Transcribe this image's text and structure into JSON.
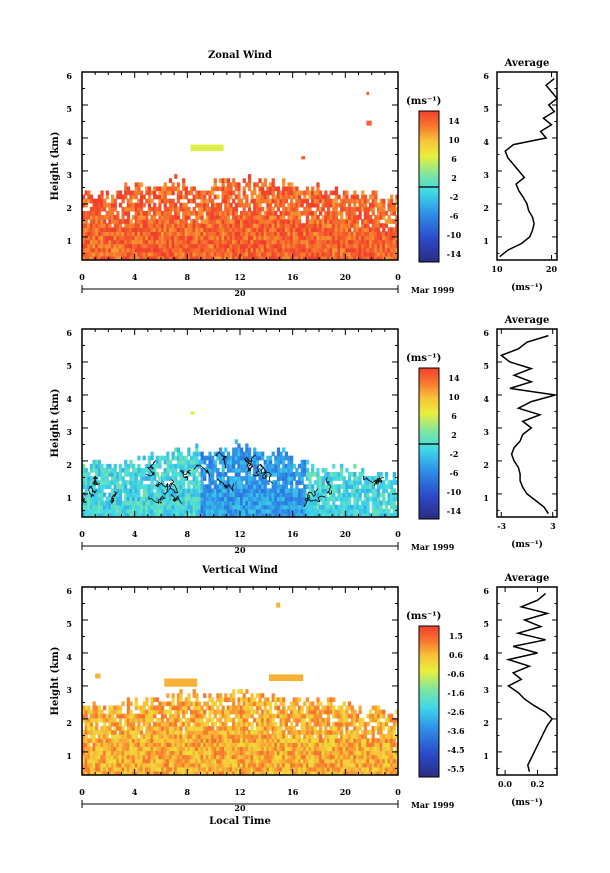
{
  "figure": {
    "shared_xlabel": "Local Time"
  },
  "chart_data": [
    {
      "type": "heatmap",
      "title": "Zonal Wind",
      "ylabel": "Height (km)",
      "xlim": [
        0,
        24
      ],
      "ylim": [
        0.3,
        6
      ],
      "xticks": [
        "0",
        "4",
        "8",
        "12",
        "16",
        "20",
        "0"
      ],
      "yticks": [
        "1",
        "2",
        "3",
        "4",
        "5",
        "6"
      ],
      "date_axis": {
        "day": "20",
        "month": "Mar 1999"
      },
      "colorbar": {
        "unit": "(ms⁻¹)",
        "ticks": [
          "14",
          "10",
          "6",
          "2",
          "-2",
          "-6",
          "-10",
          "-14"
        ],
        "range": [
          -16,
          16
        ]
      },
      "field": {
        "base_value": 14,
        "top_height_km": [
          2.2,
          2.3,
          2.2,
          2.4,
          2.5,
          2.5,
          2.6,
          2.7,
          2.6,
          2.5,
          2.6,
          2.7,
          2.8,
          2.7,
          2.7,
          2.6,
          2.6,
          2.5,
          2.5,
          2.5,
          2.4,
          2.3,
          2.3,
          2.2,
          2.2
        ]
      },
      "contours": false,
      "profile": {
        "title": "Average",
        "xlabel": "(ms⁻¹)",
        "xticks": [
          "10",
          "20"
        ],
        "xlim": [
          10,
          21
        ],
        "heights_km": [
          0.4,
          0.6,
          0.8,
          1.0,
          1.2,
          1.4,
          1.6,
          1.8,
          2.0,
          2.2,
          2.4,
          2.6,
          2.8,
          3.0,
          3.2,
          3.4,
          3.6,
          3.8,
          4.0,
          4.2,
          4.4,
          4.6,
          4.8,
          5.0,
          5.2,
          5.4,
          5.6,
          5.8
        ],
        "values": [
          10.5,
          12.0,
          14.5,
          16.0,
          16.5,
          16.8,
          16.5,
          15.8,
          15.5,
          14.8,
          14.0,
          13.5,
          15.0,
          14.0,
          13.0,
          12.0,
          11.5,
          13.0,
          19.0,
          18.0,
          20.0,
          18.5,
          20.5,
          19.5,
          21.0,
          20.0,
          19.0,
          20.5
        ]
      }
    },
    {
      "type": "heatmap",
      "title": "Meridional Wind",
      "ylabel": "Height (km)",
      "xlim": [
        0,
        24
      ],
      "ylim": [
        0.3,
        6
      ],
      "xticks": [
        "0",
        "4",
        "8",
        "12",
        "16",
        "20",
        "0"
      ],
      "yticks": [
        "1",
        "2",
        "3",
        "4",
        "5",
        "6"
      ],
      "date_axis": {
        "day": "20",
        "month": "Mar 1999"
      },
      "colorbar": {
        "unit": "(ms⁻¹)",
        "ticks": [
          "14",
          "10",
          "6",
          "2",
          "-2",
          "-6",
          "-10",
          "-14"
        ],
        "range": [
          -16,
          16
        ]
      },
      "field": {
        "base_value": -1,
        "top_height_km": [
          1.8,
          2.0,
          1.9,
          1.8,
          2.0,
          2.1,
          2.2,
          2.2,
          2.3,
          2.4,
          2.2,
          2.4,
          2.5,
          2.3,
          2.2,
          2.3,
          2.0,
          1.9,
          1.8,
          1.8,
          1.7,
          1.8,
          1.6,
          1.6,
          1.5
        ]
      },
      "contours": true,
      "profile": {
        "title": "Average",
        "xlabel": "(ms⁻¹)",
        "xticks": [
          "-3",
          "3"
        ],
        "xlim": [
          -3.5,
          3.5
        ],
        "heights_km": [
          0.4,
          0.6,
          0.8,
          1.0,
          1.2,
          1.4,
          1.6,
          1.8,
          2.0,
          2.2,
          2.4,
          2.6,
          2.8,
          3.0,
          3.2,
          3.4,
          3.6,
          3.8,
          4.0,
          4.2,
          4.4,
          4.6,
          4.8,
          5.0,
          5.2,
          5.4,
          5.6,
          5.8
        ],
        "values": [
          2.5,
          2.0,
          1.0,
          0.0,
          -0.5,
          -0.8,
          -0.8,
          -1.0,
          -1.5,
          -1.8,
          -1.5,
          -0.8,
          -0.5,
          0.5,
          -0.5,
          1.5,
          -1.0,
          0.5,
          3.3,
          -2.0,
          0.5,
          -1.5,
          0.5,
          -2.0,
          -3.0,
          -1.0,
          0.0,
          2.5
        ]
      }
    },
    {
      "type": "heatmap",
      "title": "Vertical Wind",
      "ylabel": "Height (km)",
      "xlim": [
        0,
        24
      ],
      "ylim": [
        0.3,
        6
      ],
      "xticks": [
        "0",
        "4",
        "8",
        "12",
        "16",
        "20",
        "0"
      ],
      "yticks": [
        "1",
        "2",
        "3",
        "4",
        "5",
        "6"
      ],
      "date_axis": {
        "day": "20",
        "month": "Mar 1999"
      },
      "colorbar": {
        "unit": "(ms⁻¹)",
        "ticks": [
          "1.5",
          "0.6",
          "-0.6",
          "-1.6",
          "-2.6",
          "-3.6",
          "-4.5",
          "-5.5"
        ],
        "range": [
          -6,
          2
        ]
      },
      "field": {
        "base_value": 0.6,
        "top_height_km": [
          2.3,
          2.4,
          2.3,
          2.5,
          2.5,
          2.6,
          2.7,
          2.7,
          2.8,
          2.7,
          2.6,
          2.8,
          2.9,
          2.8,
          2.7,
          2.7,
          2.6,
          2.5,
          2.5,
          2.5,
          2.4,
          2.3,
          2.3,
          2.2,
          2.1
        ]
      },
      "contours": false,
      "profile": {
        "title": "Average",
        "xlabel": "(ms⁻¹)",
        "xticks": [
          "0.0",
          "0.2"
        ],
        "xlim": [
          -0.05,
          0.32
        ],
        "heights_km": [
          0.4,
          0.6,
          0.8,
          1.0,
          1.2,
          1.4,
          1.6,
          1.8,
          2.0,
          2.2,
          2.4,
          2.6,
          2.8,
          3.0,
          3.2,
          3.4,
          3.6,
          3.8,
          4.0,
          4.2,
          4.4,
          4.6,
          4.8,
          5.0,
          5.2,
          5.4,
          5.6,
          5.8
        ],
        "values": [
          0.15,
          0.14,
          0.16,
          0.18,
          0.2,
          0.22,
          0.24,
          0.26,
          0.29,
          0.25,
          0.18,
          0.12,
          0.08,
          0.02,
          0.1,
          0.05,
          0.15,
          0.02,
          0.2,
          0.05,
          0.25,
          0.08,
          0.22,
          0.12,
          0.26,
          0.1,
          0.2,
          0.25
        ]
      }
    }
  ]
}
